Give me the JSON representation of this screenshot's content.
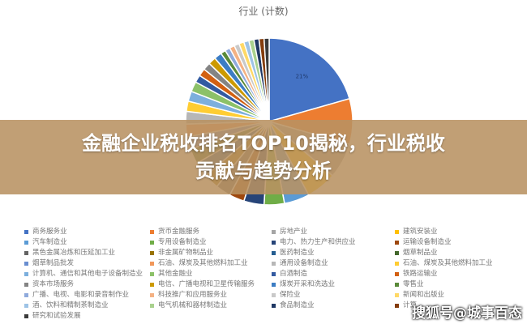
{
  "chart_data": {
    "type": "pie",
    "title": "行业 (计数)",
    "legend_position": "bottom",
    "categories": [
      "商务服务业",
      "货币金融服务",
      "房地产业",
      "建筑安装业",
      "汽车制造业",
      "专用设备制造业",
      "电力、热力生产和供应业",
      "运输设备制造业",
      "黑色金属冶炼和压延加工业",
      "非金属矿物制品业",
      "医药制造业",
      "烟草制品业",
      "烟草制品批发",
      "石油、煤炭及其他燃料加工业",
      "通用设备制造业",
      "石油、煤炭及其他燃料加工业",
      "计算机、通信和其他电子设备制造业",
      "其他金融业",
      "白酒制造",
      "铁路运输业",
      "资本市场服务",
      "电信、广播电视和卫星传输服务",
      "煤炭开采和洗选业",
      "零售业",
      "广播、电视、电影和录音制作业",
      "科技推广和应用服务业",
      "保险业",
      "新闻和出版业",
      "酒、饮料和精制茶制造业",
      "电气机械和器材制造业",
      "食品制造业",
      "计算",
      "研究和试验发展"
    ],
    "values": [
      21,
      9,
      7,
      6,
      5,
      4,
      4,
      3,
      3,
      3,
      3,
      3,
      2.5,
      2.5,
      2.5,
      2,
      2,
      2,
      1.5,
      1.5,
      1.5,
      1.5,
      1.5,
      1,
      1,
      1,
      1,
      1,
      1,
      1,
      1,
      1,
      1
    ],
    "data_labels": [
      "21%"
    ],
    "colors": [
      "#4472C4",
      "#ED7D31",
      "#A5A5A5",
      "#FFC000",
      "#5B9BD5",
      "#70AD47",
      "#264478",
      "#9E480E",
      "#636363",
      "#997300",
      "#255E91",
      "#43682B",
      "#698ED0",
      "#F1975A",
      "#B7B7B7",
      "#FFCD33",
      "#7CAFDD",
      "#8CC168",
      "#335AA1",
      "#D26012",
      "#848484",
      "#CC9A00",
      "#3C7DC4",
      "#5A8A39",
      "#8FAADC",
      "#F4B183",
      "#C9C9C9",
      "#FFD966",
      "#9DC3E6",
      "#A9D18E",
      "#1F3864",
      "#843C0C",
      "#3A3A3A"
    ]
  },
  "banner": {
    "line1": "金融企业税收排名TOP10揭秘，行业税收",
    "line2": "贡献与趋势分析"
  },
  "watermark": "搜狐号@城事百态"
}
